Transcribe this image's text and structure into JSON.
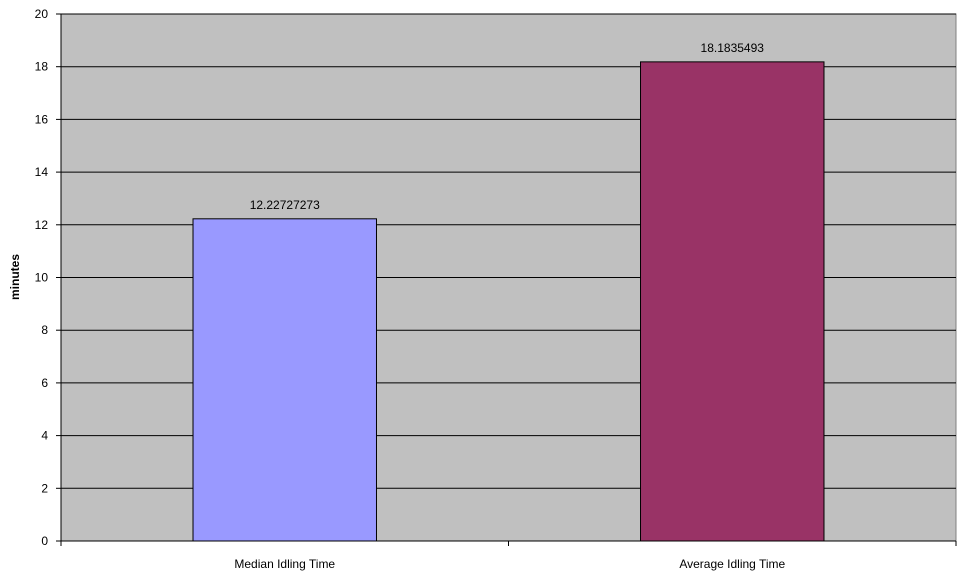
{
  "chart_data": {
    "type": "bar",
    "title": "",
    "xlabel": "",
    "ylabel": "minutes",
    "ylim": [
      0,
      20
    ],
    "y_ticks": [
      0,
      2,
      4,
      6,
      8,
      10,
      12,
      14,
      16,
      18,
      20
    ],
    "categories": [
      "Median Idling Time",
      "Average Idling Time"
    ],
    "values": [
      12.22727273,
      18.1835493
    ],
    "data_labels": [
      "12.22727273",
      "18.1835493"
    ],
    "bar_colors": [
      "#9999ff",
      "#993366"
    ],
    "plot_background": "#c0c0c0",
    "grid": true,
    "legend": "none"
  }
}
